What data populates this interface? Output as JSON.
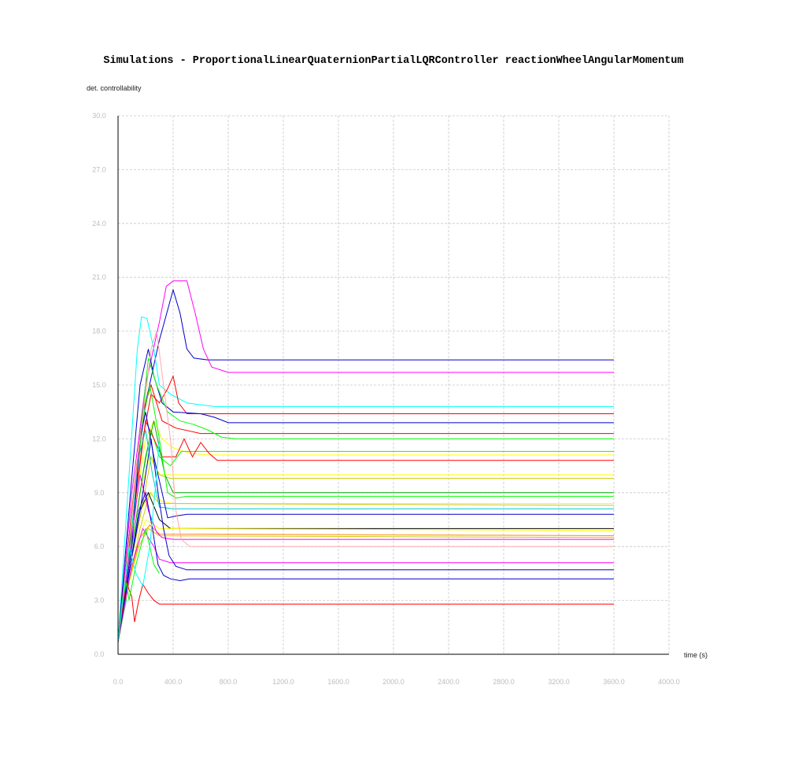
{
  "chart_data": {
    "type": "line",
    "title": "Simulations - ProportionalLinearQuaternionPartialLQRController reactionWheelAngularMomentum",
    "xlabel": "time (s)",
    "ylabel": "det. controllability",
    "xlim": [
      0,
      4000
    ],
    "ylim": [
      0,
      30
    ],
    "x_ticks": [
      "0.0",
      "400.0",
      "800.0",
      "1200.0",
      "1600.0",
      "2000.0",
      "2400.0",
      "2800.0",
      "3200.0",
      "3600.0",
      "4000.0"
    ],
    "y_ticks": [
      "0.0",
      "3.0",
      "6.0",
      "9.0",
      "12.0",
      "15.0",
      "18.0",
      "21.0",
      "24.0",
      "27.0",
      "30.0"
    ],
    "grid": true,
    "legend": "none",
    "series": [
      {
        "color": "#0000cc",
        "points": [
          [
            0,
            0.7
          ],
          [
            100,
            8
          ],
          [
            200,
            14
          ],
          [
            300,
            17.5
          ],
          [
            400,
            20.3
          ],
          [
            450,
            19
          ],
          [
            500,
            17
          ],
          [
            550,
            16.5
          ],
          [
            650,
            16.4
          ],
          [
            3600,
            16.4
          ]
        ]
      },
      {
        "color": "#ff00ff",
        "points": [
          [
            0,
            0.7
          ],
          [
            100,
            9
          ],
          [
            200,
            15
          ],
          [
            300,
            18.5
          ],
          [
            350,
            20.5
          ],
          [
            400,
            20.8
          ],
          [
            500,
            20.8
          ],
          [
            560,
            19
          ],
          [
            620,
            17
          ],
          [
            680,
            16
          ],
          [
            800,
            15.7
          ],
          [
            3600,
            15.7
          ]
        ]
      },
      {
        "color": "#00ffff",
        "points": [
          [
            0,
            0.7
          ],
          [
            80,
            10
          ],
          [
            140,
            17
          ],
          [
            170,
            18.8
          ],
          [
            210,
            18.7
          ],
          [
            260,
            17
          ],
          [
            300,
            15
          ],
          [
            380,
            14.5
          ],
          [
            500,
            14
          ],
          [
            700,
            13.8
          ],
          [
            3600,
            13.8
          ]
        ]
      },
      {
        "color": "#ff0000",
        "points": [
          [
            0,
            0.7
          ],
          [
            100,
            7
          ],
          [
            180,
            12
          ],
          [
            240,
            14.5
          ],
          [
            300,
            14
          ],
          [
            360,
            14.8
          ],
          [
            400,
            15.5
          ],
          [
            440,
            14
          ],
          [
            500,
            13.4
          ],
          [
            600,
            13.4
          ],
          [
            3600,
            13.4
          ]
        ]
      },
      {
        "color": "#0000cc",
        "points": [
          [
            0,
            0.7
          ],
          [
            90,
            9
          ],
          [
            160,
            15
          ],
          [
            220,
            17
          ],
          [
            260,
            15.5
          ],
          [
            320,
            14
          ],
          [
            400,
            13.5
          ],
          [
            600,
            13.4
          ],
          [
            700,
            13.2
          ],
          [
            800,
            12.9
          ],
          [
            3600,
            12.9
          ]
        ]
      },
      {
        "color": "#ff0000",
        "points": [
          [
            0,
            0.7
          ],
          [
            100,
            8
          ],
          [
            180,
            13.5
          ],
          [
            240,
            15
          ],
          [
            320,
            13
          ],
          [
            420,
            12.6
          ],
          [
            600,
            12.3
          ],
          [
            3600,
            12.3
          ]
        ]
      },
      {
        "color": "#00ff00",
        "points": [
          [
            0,
            0.7
          ],
          [
            90,
            7
          ],
          [
            160,
            12
          ],
          [
            220,
            16.5
          ],
          [
            280,
            15
          ],
          [
            360,
            13.5
          ],
          [
            450,
            13
          ],
          [
            550,
            12.8
          ],
          [
            650,
            12.5
          ],
          [
            750,
            12.1
          ],
          [
            850,
            12
          ],
          [
            3600,
            12
          ]
        ]
      },
      {
        "color": "#ffff00",
        "points": [
          [
            0,
            0.7
          ],
          [
            100,
            7
          ],
          [
            200,
            12
          ],
          [
            260,
            13
          ],
          [
            320,
            12
          ],
          [
            400,
            11.5
          ],
          [
            520,
            11.2
          ],
          [
            650,
            11.1
          ],
          [
            3600,
            11.1
          ]
        ]
      },
      {
        "color": "#00ff00",
        "points": [
          [
            0,
            0.7
          ],
          [
            100,
            6
          ],
          [
            180,
            10
          ],
          [
            240,
            12.5
          ],
          [
            300,
            11
          ],
          [
            380,
            10.5
          ],
          [
            460,
            11.3
          ],
          [
            600,
            11.3
          ],
          [
            3600,
            11.3
          ]
        ]
      },
      {
        "color": "#ff0000",
        "points": [
          [
            0,
            0.7
          ],
          [
            80,
            6
          ],
          [
            150,
            10
          ],
          [
            200,
            13
          ],
          [
            260,
            12
          ],
          [
            320,
            11
          ],
          [
            420,
            11
          ],
          [
            480,
            12
          ],
          [
            540,
            11
          ],
          [
            600,
            11.8
          ],
          [
            660,
            11.2
          ],
          [
            720,
            10.8
          ],
          [
            3600,
            10.8
          ]
        ]
      },
      {
        "color": "#ffff00",
        "points": [
          [
            0,
            0.7
          ],
          [
            80,
            5
          ],
          [
            160,
            9
          ],
          [
            230,
            11
          ],
          [
            300,
            10
          ],
          [
            400,
            10
          ],
          [
            3600,
            10
          ]
        ]
      },
      {
        "color": "#cccc00",
        "points": [
          [
            0,
            0.7
          ],
          [
            90,
            5
          ],
          [
            170,
            8
          ],
          [
            240,
            11
          ],
          [
            300,
            10
          ],
          [
            380,
            9.8
          ],
          [
            3600,
            9.8
          ]
        ]
      },
      {
        "color": "#00aa00",
        "points": [
          [
            0,
            0.7
          ],
          [
            100,
            6
          ],
          [
            200,
            11
          ],
          [
            260,
            13
          ],
          [
            340,
            10
          ],
          [
            400,
            9
          ],
          [
            500,
            9
          ],
          [
            3600,
            9
          ]
        ]
      },
      {
        "color": "#00ff00",
        "points": [
          [
            0,
            0.7
          ],
          [
            100,
            7
          ],
          [
            180,
            13
          ],
          [
            230,
            15
          ],
          [
            300,
            12
          ],
          [
            360,
            9
          ],
          [
            420,
            8.7
          ],
          [
            500,
            8.8
          ],
          [
            3600,
            8.8
          ]
        ]
      },
      {
        "color": "#ffff00",
        "points": [
          [
            0,
            0.7
          ],
          [
            90,
            5
          ],
          [
            160,
            8
          ],
          [
            240,
            9
          ],
          [
            320,
            8.5
          ],
          [
            400,
            8.4
          ],
          [
            3600,
            8.4
          ]
        ]
      },
      {
        "color": "#cccc00",
        "points": [
          [
            0,
            0.7
          ],
          [
            80,
            4
          ],
          [
            160,
            7
          ],
          [
            230,
            9
          ],
          [
            300,
            8.4
          ],
          [
            3600,
            8.3
          ]
        ]
      },
      {
        "color": "#00cccc",
        "points": [
          [
            0,
            0.7
          ],
          [
            60,
            3
          ],
          [
            100,
            7
          ],
          [
            150,
            11
          ],
          [
            200,
            12.5
          ],
          [
            250,
            10
          ],
          [
            300,
            8.2
          ],
          [
            400,
            8.1
          ],
          [
            3600,
            8.1
          ]
        ]
      },
      {
        "color": "#0000cc",
        "points": [
          [
            0,
            0.7
          ],
          [
            100,
            6
          ],
          [
            160,
            12
          ],
          [
            200,
            13.5
          ],
          [
            260,
            11
          ],
          [
            320,
            9
          ],
          [
            360,
            7.6
          ],
          [
            420,
            7.7
          ],
          [
            500,
            7.8
          ],
          [
            3600,
            7.8
          ]
        ]
      },
      {
        "color": "#000000",
        "points": [
          [
            0,
            0.7
          ],
          [
            90,
            5
          ],
          [
            160,
            8
          ],
          [
            220,
            9
          ],
          [
            300,
            7.5
          ],
          [
            380,
            7
          ],
          [
            3600,
            7
          ]
        ]
      },
      {
        "color": "#ffff00",
        "points": [
          [
            0,
            0.7
          ],
          [
            80,
            4
          ],
          [
            140,
            6
          ],
          [
            200,
            7.5
          ],
          [
            300,
            7
          ],
          [
            3600,
            6.9
          ]
        ]
      },
      {
        "color": "#ff8800",
        "points": [
          [
            0,
            0.7
          ],
          [
            90,
            4.5
          ],
          [
            160,
            6.5
          ],
          [
            230,
            7.2
          ],
          [
            300,
            6.7
          ],
          [
            3600,
            6.6
          ]
        ]
      },
      {
        "color": "#cccc00",
        "points": [
          [
            0,
            0.7
          ],
          [
            80,
            4
          ],
          [
            150,
            6
          ],
          [
            220,
            7
          ],
          [
            300,
            6.6
          ],
          [
            3600,
            6.5
          ]
        ]
      },
      {
        "color": "#ff00ff",
        "points": [
          [
            0,
            0.7
          ],
          [
            90,
            6
          ],
          [
            160,
            10
          ],
          [
            220,
            8
          ],
          [
            280,
            6.8
          ],
          [
            320,
            6.5
          ],
          [
            400,
            6.4
          ],
          [
            600,
            6.4
          ],
          [
            3600,
            6.4
          ]
        ]
      },
      {
        "color": "#ffaaaa",
        "points": [
          [
            0,
            0.7
          ],
          [
            90,
            7
          ],
          [
            160,
            12
          ],
          [
            240,
            17
          ],
          [
            280,
            18
          ],
          [
            330,
            15
          ],
          [
            380,
            12
          ],
          [
            420,
            8
          ],
          [
            460,
            6.4
          ],
          [
            520,
            6
          ],
          [
            600,
            6
          ],
          [
            3600,
            6
          ]
        ]
      },
      {
        "color": "#ff00ff",
        "points": [
          [
            0,
            0.7
          ],
          [
            100,
            5
          ],
          [
            180,
            7
          ],
          [
            260,
            6
          ],
          [
            300,
            5.3
          ],
          [
            380,
            5.1
          ],
          [
            500,
            5.1
          ],
          [
            3600,
            5.1
          ]
        ]
      },
      {
        "color": "#0000cc",
        "points": [
          [
            0,
            0.7
          ],
          [
            90,
            5
          ],
          [
            160,
            8
          ],
          [
            240,
            12
          ],
          [
            290,
            9
          ],
          [
            330,
            7
          ],
          [
            370,
            5.5
          ],
          [
            420,
            4.9
          ],
          [
            500,
            4.7
          ],
          [
            3600,
            4.7
          ]
        ]
      },
      {
        "color": "#0000cc",
        "points": [
          [
            0,
            0.7
          ],
          [
            90,
            5
          ],
          [
            150,
            8
          ],
          [
            200,
            9
          ],
          [
            250,
            7
          ],
          [
            290,
            5
          ],
          [
            330,
            4.4
          ],
          [
            380,
            4.2
          ],
          [
            450,
            4.1
          ],
          [
            520,
            4.2
          ],
          [
            3600,
            4.2
          ]
        ]
      },
      {
        "color": "#ff0000",
        "points": [
          [
            0,
            0.7
          ],
          [
            60,
            4
          ],
          [
            100,
            3.2
          ],
          [
            120,
            1.8
          ],
          [
            150,
            3
          ],
          [
            180,
            3.9
          ],
          [
            220,
            3.4
          ],
          [
            260,
            3
          ],
          [
            300,
            2.8
          ],
          [
            400,
            2.8
          ],
          [
            3600,
            2.8
          ]
        ]
      },
      {
        "color": "#00ff00",
        "points": [
          [
            0,
            0.7
          ],
          [
            30,
            3
          ],
          [
            60,
            4
          ],
          [
            80,
            3
          ],
          [
            130,
            5
          ],
          [
            200,
            7
          ],
          [
            260,
            5
          ],
          [
            300,
            4.5
          ]
        ]
      },
      {
        "color": "#00ffff",
        "points": [
          [
            0,
            0.7
          ],
          [
            80,
            6
          ],
          [
            130,
            4.5
          ],
          [
            180,
            3.8
          ],
          [
            230,
            6
          ],
          [
            280,
            10
          ],
          [
            300,
            12
          ]
        ]
      }
    ]
  }
}
